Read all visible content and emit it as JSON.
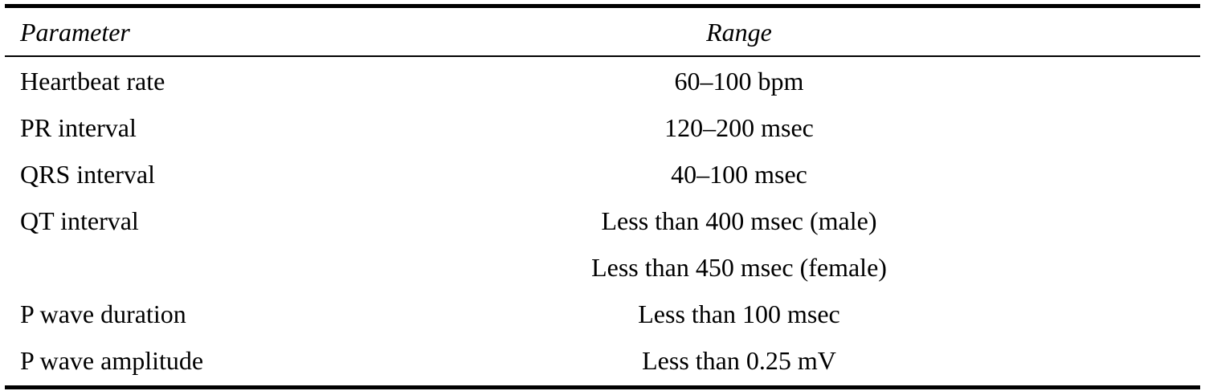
{
  "header": {
    "parameter": "Parameter",
    "range": "Range"
  },
  "rows": [
    {
      "parameter": "Heartbeat rate",
      "ranges": [
        "60–100 bpm"
      ]
    },
    {
      "parameter": "PR interval",
      "ranges": [
        "120–200 msec"
      ]
    },
    {
      "parameter": "QRS interval",
      "ranges": [
        "40–100 msec"
      ]
    },
    {
      "parameter": "QT interval",
      "ranges": [
        "Less than 400 msec (male)",
        "Less than 450 msec (female)"
      ]
    },
    {
      "parameter": "P wave duration",
      "ranges": [
        "Less than 100 msec"
      ]
    },
    {
      "parameter": "P wave amplitude",
      "ranges": [
        "Less than 0.25 mV"
      ]
    }
  ]
}
